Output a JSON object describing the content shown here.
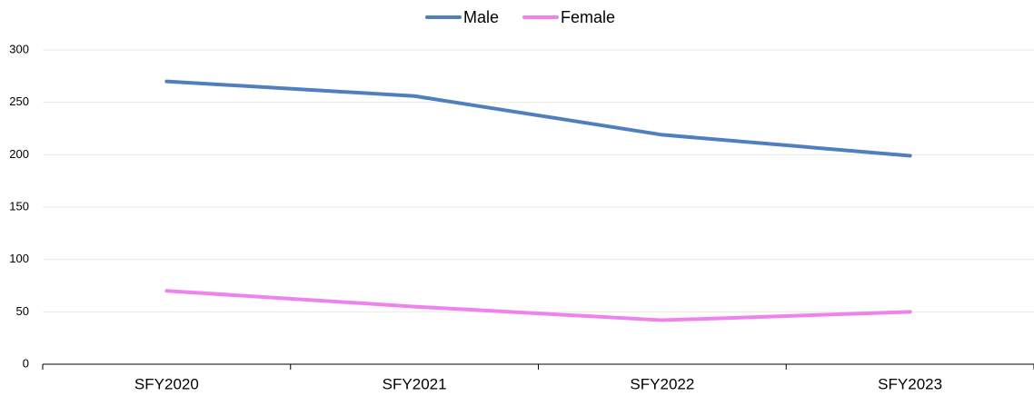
{
  "chart_data": {
    "type": "line",
    "categories": [
      "SFY2020",
      "SFY2021",
      "SFY2022",
      "SFY2023"
    ],
    "series": [
      {
        "name": "Male",
        "color": "#4f7fbf",
        "values": [
          270,
          256,
          219,
          199
        ]
      },
      {
        "name": "Female",
        "color": "#ee82ee",
        "values": [
          70,
          55,
          42,
          50
        ]
      }
    ],
    "ylim": [
      0,
      300
    ],
    "yticks": [
      0,
      50,
      100,
      150,
      200,
      250,
      300
    ],
    "grid": true,
    "legend": "top"
  }
}
